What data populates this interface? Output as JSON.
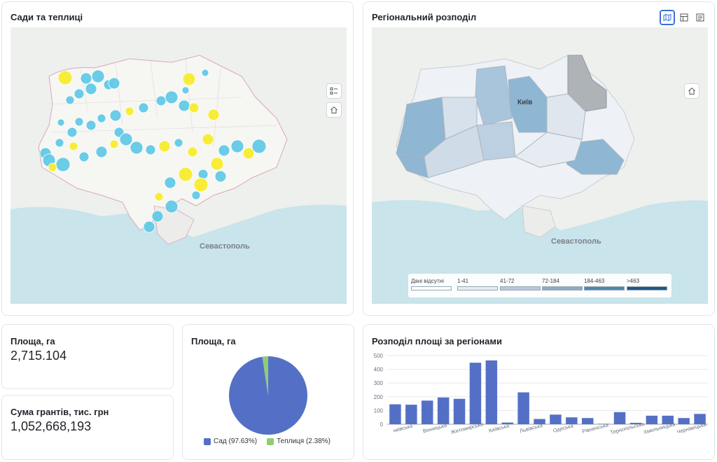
{
  "map1": {
    "title": "Сади та теплиці",
    "city_label": "Севастополь",
    "colors": {
      "sad": "#62c9e6",
      "teplytsia": "#f7ec2e"
    },
    "icons": [
      "legend-list-icon",
      "home-icon"
    ]
  },
  "map2": {
    "title": "Регіональний розподіл",
    "city_label": "Севастополь",
    "kyiv_label": "Київ",
    "icons": [
      "map-icon",
      "table-icon",
      "details-icon",
      "home-icon"
    ],
    "legend": [
      {
        "label": "Дані відсутні",
        "color": "#ffffff"
      },
      {
        "label": "1-41",
        "color": "#e6ecf2"
      },
      {
        "label": "41-72",
        "color": "#b8c8da"
      },
      {
        "label": "72-184",
        "color": "#8faac4"
      },
      {
        "label": "184-463",
        "color": "#4f86b0"
      },
      {
        "label": ">463",
        "color": "#1f5789"
      }
    ]
  },
  "kpi_area": {
    "label": "Площа, га",
    "value": "2,715.104"
  },
  "kpi_grants": {
    "label": "Сума грантів, тис. грн",
    "value": "1,052,668,193"
  },
  "pie": {
    "title": "Площа, га",
    "legend": [
      {
        "label": "Сад (97.63%)",
        "color": "#5470c6"
      },
      {
        "label": "Теплиця (2.38%)",
        "color": "#91cc75"
      }
    ]
  },
  "bars": {
    "title": "Розподіл площі за регіонами",
    "bar_color": "#5470c6"
  },
  "chart_data": {
    "type": "bar",
    "title": "Розподіл площі за регіонами",
    "ylim": [
      0,
      500
    ],
    "yticks": [
      0,
      100,
      200,
      300,
      400,
      500
    ],
    "tick_labels": [
      "нківська",
      "Вінницька",
      "Житомирська",
      "Київська",
      "Львівська",
      "Одеська",
      "Рівненська",
      "Тернопільська",
      "Хмельницька",
      "Чернівецька"
    ],
    "values": [
      145,
      142,
      172,
      195,
      185,
      448,
      465,
      12,
      232,
      38,
      70,
      50,
      45,
      3,
      88,
      10,
      62,
      62,
      45,
      75
    ]
  }
}
